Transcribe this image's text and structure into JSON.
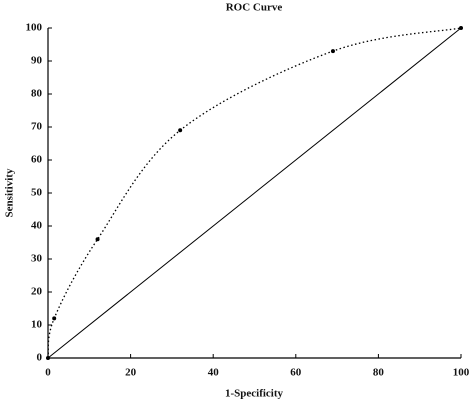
{
  "chart_data": {
    "type": "line",
    "title": "ROC Curve",
    "xlabel": "1-Specificity",
    "ylabel": "Sensitivity",
    "xlim": [
      0,
      100
    ],
    "ylim": [
      0,
      100
    ],
    "xticks": [
      0,
      20,
      40,
      60,
      80,
      100
    ],
    "yticks": [
      0,
      10,
      20,
      30,
      40,
      50,
      60,
      70,
      80,
      90,
      100
    ],
    "grid": false,
    "series": [
      {
        "color": "#000000",
        "dash": "dotted",
        "markers": true,
        "smooth": true,
        "x": [
          0,
          1.5,
          12,
          32,
          69,
          100
        ],
        "values": [
          0,
          12,
          36,
          69,
          93,
          100
        ]
      },
      {
        "color": "#000000",
        "dash": "solid",
        "markers": false,
        "smooth": false,
        "x": [
          0,
          100
        ],
        "values": [
          0,
          100
        ]
      }
    ]
  }
}
